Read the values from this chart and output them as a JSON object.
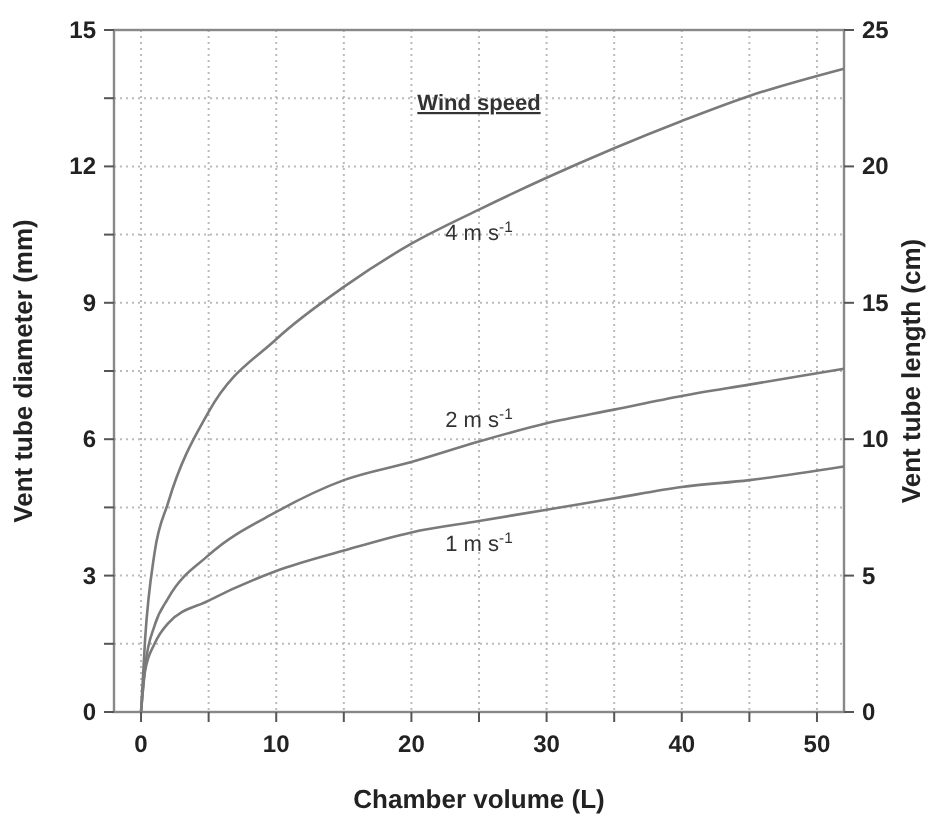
{
  "chart_data": {
    "type": "line",
    "xlabel": "Chamber volume (L)",
    "ylabel": "Vent tube diameter (mm)",
    "y2label": "Vent tube length (cm)",
    "legend_title": "Wind speed",
    "grid": true,
    "marker": "none",
    "line_style": "solid",
    "x": [
      0,
      0.3,
      1,
      2,
      5,
      10,
      15,
      20,
      25,
      30,
      35,
      40,
      45,
      52
    ],
    "series": [
      {
        "name": "4 m s$^{-1}$",
        "color": "#7a7a7a",
        "values": [
          0,
          1.6,
          3.5,
          4.6,
          6.6,
          8.2,
          9.35,
          10.3,
          11.05,
          11.75,
          12.4,
          13.0,
          13.55,
          14.15
        ]
      },
      {
        "name": "2 m s$^{-1}$",
        "color": "#7a7a7a",
        "values": [
          0,
          1.0,
          1.9,
          2.5,
          3.45,
          4.4,
          5.1,
          5.5,
          5.95,
          6.35,
          6.65,
          6.95,
          7.2,
          7.55
        ]
      },
      {
        "name": "1 m s$^{-1}$",
        "color": "#7a7a7a",
        "values": [
          0,
          0.9,
          1.5,
          1.95,
          2.45,
          3.1,
          3.55,
          3.95,
          4.2,
          4.45,
          4.7,
          4.95,
          5.1,
          5.4
        ]
      }
    ],
    "xlim": [
      -2,
      52
    ],
    "xticks": [
      0,
      {
        "value": 5,
        "label": null
      },
      10,
      {
        "value": 15,
        "label": null
      },
      20,
      {
        "value": 25,
        "label": null
      },
      30,
      {
        "value": 35,
        "label": null
      },
      40,
      {
        "value": 45,
        "label": null
      },
      50
    ],
    "ylim": [
      0,
      15
    ],
    "yticks": [
      0,
      {
        "value": 1.5,
        "label": null
      },
      3,
      {
        "value": 4.5,
        "label": null
      },
      6,
      {
        "value": 7.5,
        "label": null
      },
      9,
      {
        "value": 10.5,
        "label": null
      },
      12,
      {
        "value": 13.5,
        "label": null
      },
      15
    ],
    "y2lim": [
      0,
      25
    ],
    "y2ticks": [
      0,
      5,
      10,
      15,
      20,
      25
    ]
  }
}
